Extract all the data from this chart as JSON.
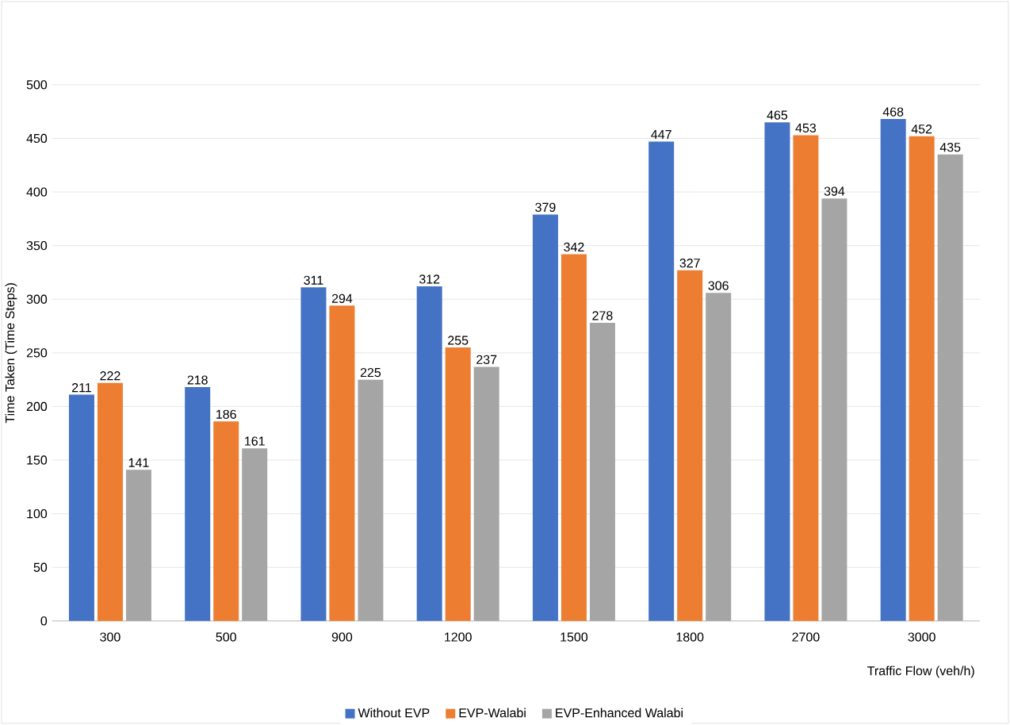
{
  "chart_data": {
    "type": "bar",
    "xlabel": "Traffic Flow (veh/h)",
    "ylabel": "Time Taken (Time Steps)",
    "categories": [
      "300",
      "500",
      "900",
      "1200",
      "1500",
      "1800",
      "2700",
      "3000"
    ],
    "series": [
      {
        "name": "Without EVP",
        "color": "#4472c4",
        "values": [
          211,
          218,
          311,
          312,
          379,
          447,
          465,
          468
        ]
      },
      {
        "name": "EVP-Walabi",
        "color": "#ed7d31",
        "values": [
          222,
          186,
          294,
          255,
          342,
          327,
          453,
          452
        ]
      },
      {
        "name": "EVP-Enhanced Walabi",
        "color": "#a5a5a5",
        "values": [
          141,
          161,
          225,
          237,
          278,
          306,
          394,
          435
        ]
      }
    ],
    "ylim": [
      0,
      500
    ],
    "yticks": [
      0,
      50,
      100,
      150,
      200,
      250,
      300,
      350,
      400,
      450,
      500
    ],
    "grid": "y",
    "legend": "bottom",
    "data_labels": true
  }
}
